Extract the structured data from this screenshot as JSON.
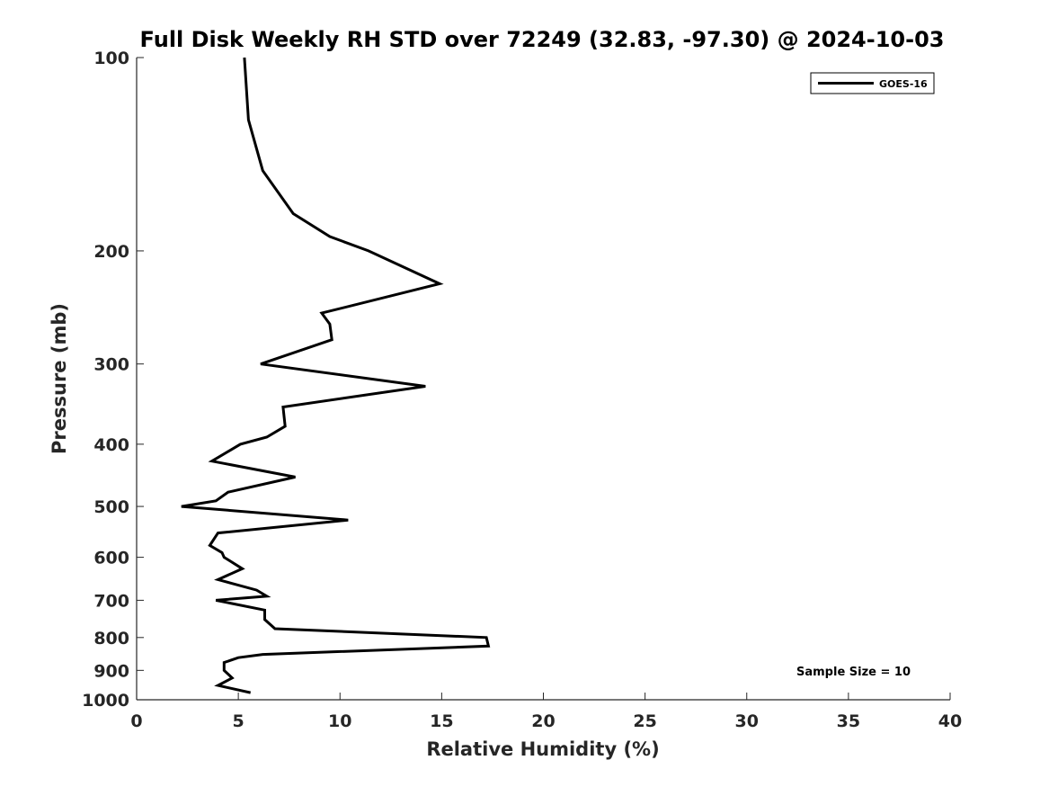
{
  "chart_data": {
    "type": "line",
    "title": "Full Disk Weekly RH STD over 72249 (32.83, -97.30) @ 2024-10-03",
    "xlabel": "Relative Humidity (%)",
    "ylabel": "Pressure (mb)",
    "xlim": [
      0,
      40
    ],
    "ylim": [
      1000,
      100
    ],
    "yscale": "log",
    "xticks": [
      0,
      5,
      10,
      15,
      20,
      25,
      30,
      35,
      40
    ],
    "yticks": [
      100,
      200,
      300,
      400,
      500,
      600,
      700,
      800,
      900,
      1000
    ],
    "grid": false,
    "legend_position": "top-right",
    "series": [
      {
        "name": "GOES-16",
        "color": "#000000",
        "points": [
          [
            5.3,
            100
          ],
          [
            5.5,
            125
          ],
          [
            6.2,
            150
          ],
          [
            7.7,
            175
          ],
          [
            9.5,
            190
          ],
          [
            11.4,
            200
          ],
          [
            14.9,
            225
          ],
          [
            9.1,
            250
          ],
          [
            9.5,
            260
          ],
          [
            9.6,
            275
          ],
          [
            6.1,
            300
          ],
          [
            14.2,
            325
          ],
          [
            7.2,
            350
          ],
          [
            7.3,
            375
          ],
          [
            6.4,
            390
          ],
          [
            5.1,
            400
          ],
          [
            3.7,
            425
          ],
          [
            7.8,
            450
          ],
          [
            4.5,
            475
          ],
          [
            3.9,
            490
          ],
          [
            2.2,
            500
          ],
          [
            10.4,
            525
          ],
          [
            4.0,
            550
          ],
          [
            3.6,
            575
          ],
          [
            4.2,
            590
          ],
          [
            4.3,
            600
          ],
          [
            5.2,
            625
          ],
          [
            4.0,
            650
          ],
          [
            5.9,
            675
          ],
          [
            6.4,
            690
          ],
          [
            3.9,
            700
          ],
          [
            6.3,
            725
          ],
          [
            6.3,
            750
          ],
          [
            6.8,
            775
          ],
          [
            17.2,
            800
          ],
          [
            17.3,
            825
          ],
          [
            6.2,
            850
          ],
          [
            5.0,
            860
          ],
          [
            4.3,
            875
          ],
          [
            4.3,
            900
          ],
          [
            4.7,
            925
          ],
          [
            4.0,
            950
          ],
          [
            5.6,
            975
          ]
        ]
      }
    ],
    "annotations": [
      "Sample Size = 10"
    ]
  }
}
